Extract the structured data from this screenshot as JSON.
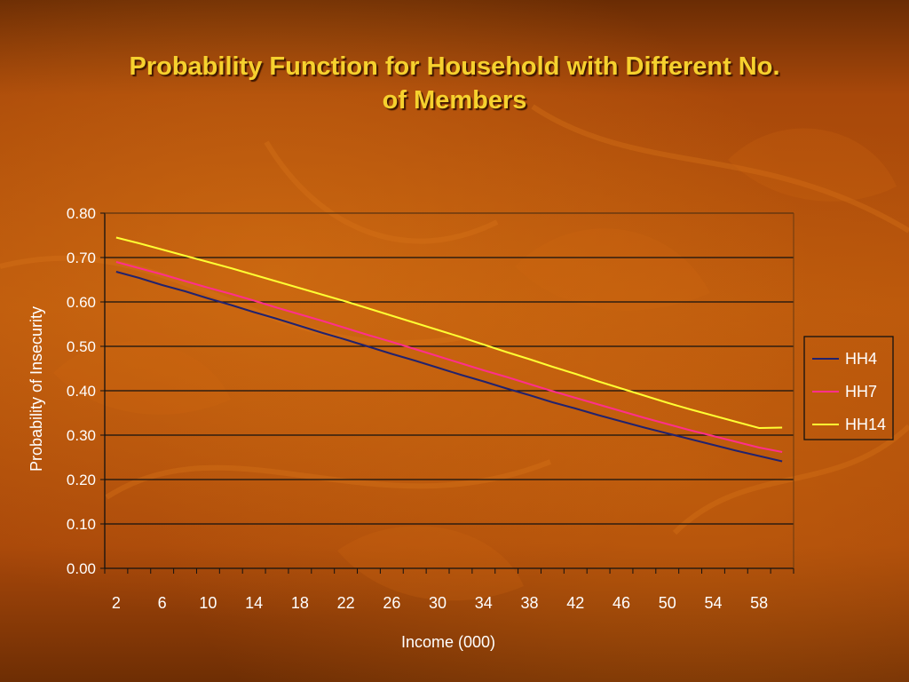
{
  "slide": {
    "title_line1": "Probability Function for Household with Different No.",
    "title_line2": "of Members"
  },
  "colors": {
    "title": "#f6d12e",
    "grid": "#111111",
    "HH4": "#22226e",
    "HH7": "#ff2f8c",
    "HH14": "#ffff33"
  },
  "chart_data": {
    "type": "line",
    "title": "",
    "xlabel": "Income (000)",
    "ylabel": "Probability of Insecurity",
    "ylim": [
      0,
      0.8
    ],
    "yticks": [
      "0.00",
      "0.10",
      "0.20",
      "0.30",
      "0.40",
      "0.50",
      "0.60",
      "0.70",
      "0.80"
    ],
    "xlim": [
      1,
      61
    ],
    "x": [
      2,
      4,
      6,
      8,
      10,
      12,
      14,
      16,
      18,
      20,
      22,
      24,
      26,
      28,
      30,
      32,
      34,
      36,
      38,
      40,
      42,
      44,
      46,
      48,
      50,
      52,
      54,
      56,
      58,
      60
    ],
    "xtick_labels": [
      "2",
      "6",
      "10",
      "14",
      "18",
      "22",
      "26",
      "30",
      "34",
      "38",
      "42",
      "46",
      "50",
      "54",
      "58"
    ],
    "grid": true,
    "legend_position": "right",
    "series": [
      {
        "name": "HH4",
        "values": [
          0.668,
          0.654,
          0.638,
          0.624,
          0.608,
          0.593,
          0.577,
          0.562,
          0.546,
          0.53,
          0.515,
          0.499,
          0.483,
          0.468,
          0.452,
          0.436,
          0.421,
          0.405,
          0.39,
          0.374,
          0.36,
          0.345,
          0.331,
          0.317,
          0.304,
          0.291,
          0.278,
          0.265,
          0.253,
          0.241
        ]
      },
      {
        "name": "HH7",
        "values": [
          0.69,
          0.676,
          0.662,
          0.647,
          0.632,
          0.618,
          0.603,
          0.587,
          0.572,
          0.557,
          0.541,
          0.525,
          0.51,
          0.494,
          0.478,
          0.462,
          0.446,
          0.431,
          0.415,
          0.399,
          0.384,
          0.369,
          0.354,
          0.339,
          0.325,
          0.311,
          0.298,
          0.285,
          0.272,
          0.262
        ]
      },
      {
        "name": "HH14",
        "values": [
          0.745,
          0.732,
          0.718,
          0.704,
          0.69,
          0.676,
          0.661,
          0.646,
          0.631,
          0.616,
          0.601,
          0.585,
          0.569,
          0.553,
          0.537,
          0.521,
          0.504,
          0.487,
          0.471,
          0.454,
          0.438,
          0.421,
          0.405,
          0.389,
          0.373,
          0.358,
          0.344,
          0.33,
          0.316,
          0.317
        ]
      }
    ]
  }
}
